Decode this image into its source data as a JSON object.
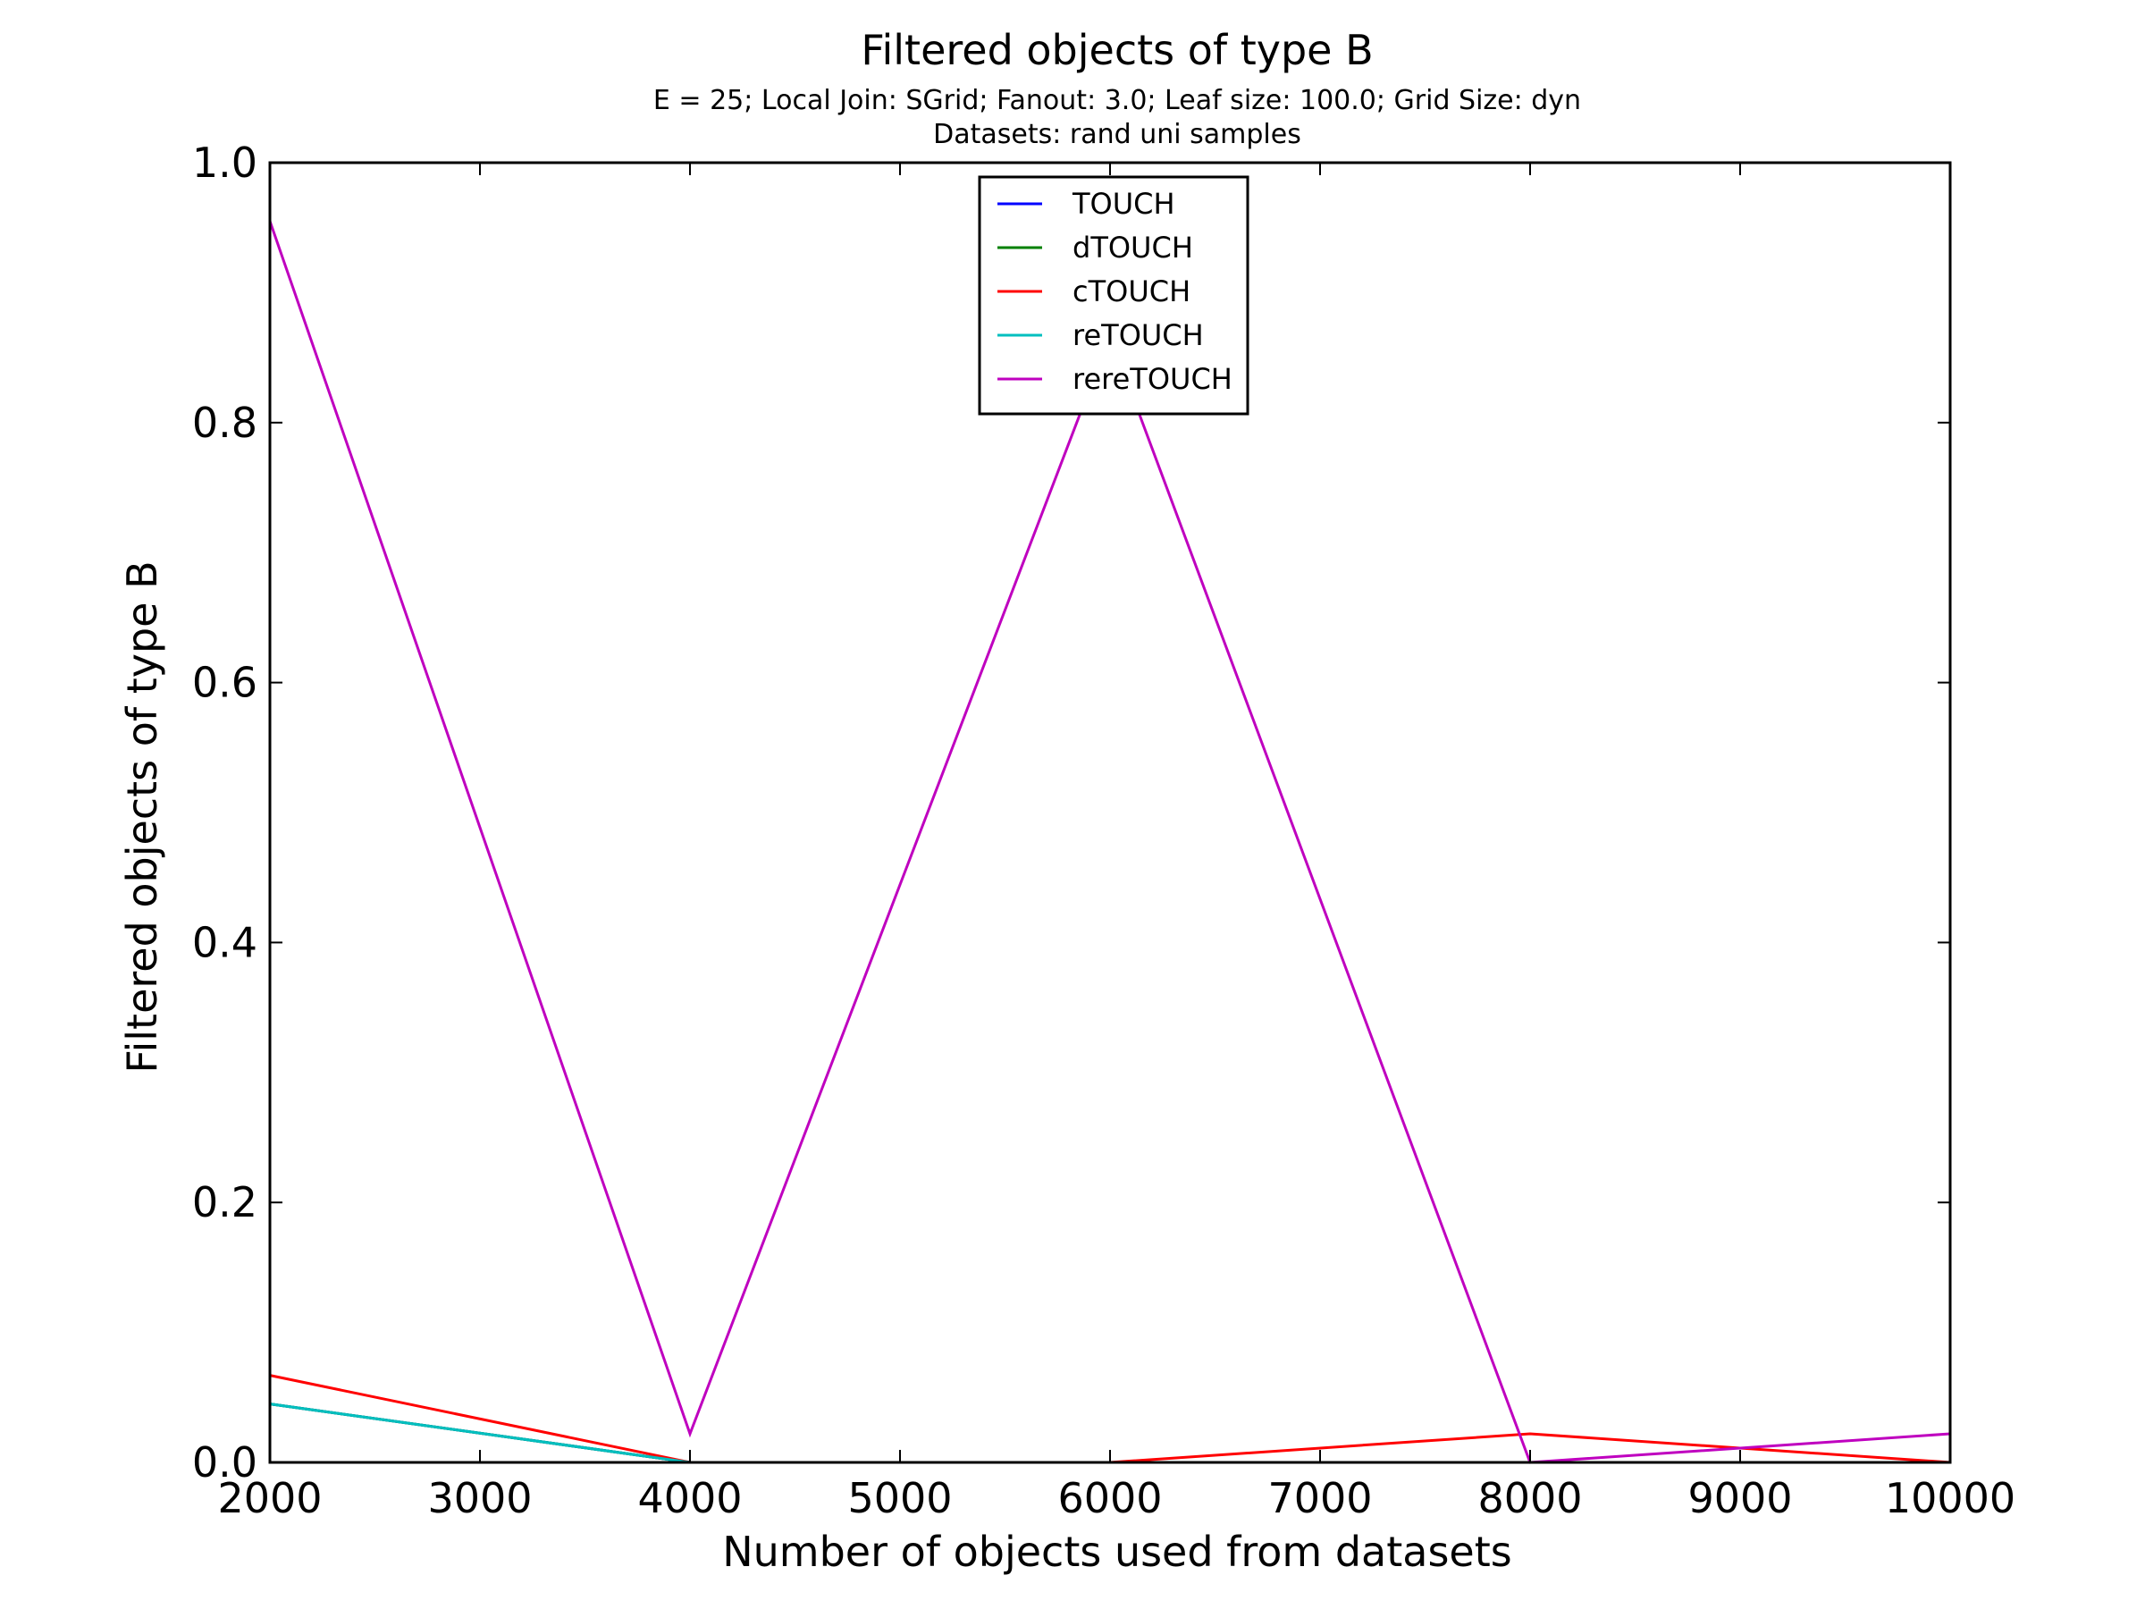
{
  "chart_data": {
    "type": "line",
    "title": "Filtered objects of type B",
    "subtitle_lines": [
      "E = 25; Local Join: SGrid; Fanout: 3.0; Leaf size: 100.0; Grid Size: dyn",
      "Datasets: rand uni samples"
    ],
    "xlabel": "Number of objects used from datasets",
    "ylabel": "Filtered objects of type B",
    "xlim": [
      2000,
      10000
    ],
    "ylim": [
      0,
      1.0
    ],
    "x_ticks": [
      2000,
      3000,
      4000,
      5000,
      6000,
      7000,
      8000,
      9000,
      10000
    ],
    "x_tick_labels": [
      "2000",
      "3000",
      "4000",
      "5000",
      "6000",
      "7000",
      "8000",
      "9000",
      "10000"
    ],
    "y_ticks": [
      0.0,
      0.2,
      0.4,
      0.6,
      0.8,
      1.0
    ],
    "y_tick_labels": [
      "0.0",
      "0.2",
      "0.4",
      "0.6",
      "0.8",
      "1.0"
    ],
    "grid": false,
    "legend_position": "top-center",
    "series": [
      {
        "name": "TOUCH",
        "color": "#0000ff",
        "x": [
          2000,
          4000,
          6000,
          8000,
          10000
        ],
        "y": [
          0.045,
          0.0,
          0.0,
          0.0,
          0.0
        ]
      },
      {
        "name": "dTOUCH",
        "color": "#008000",
        "x": [
          2000,
          4000,
          6000,
          8000,
          10000
        ],
        "y": [
          0.045,
          0.0,
          0.0,
          0.0,
          0.0
        ]
      },
      {
        "name": "cTOUCH",
        "color": "#ff0000",
        "x": [
          2000,
          4000,
          6000,
          8000,
          10000
        ],
        "y": [
          0.067,
          0.0,
          0.0,
          0.022,
          0.0
        ]
      },
      {
        "name": "reTOUCH",
        "color": "#00bfbf",
        "x": [
          2000,
          4000,
          6000,
          8000,
          10000
        ],
        "y": [
          0.045,
          0.0,
          0.0,
          0.0,
          0.0
        ]
      },
      {
        "name": "rereTOUCH",
        "color": "#bf00bf",
        "x": [
          2000,
          4000,
          6000,
          8000,
          10000
        ],
        "y": [
          0.955,
          0.022,
          0.867,
          0.0,
          0.022
        ]
      }
    ]
  }
}
